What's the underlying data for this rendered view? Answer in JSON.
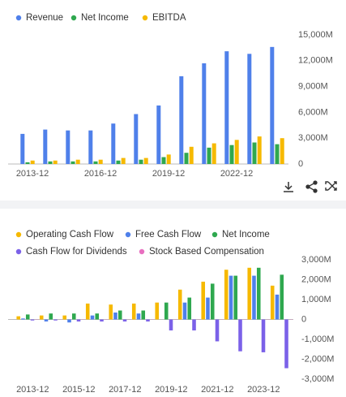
{
  "chart_data": [
    {
      "type": "bar",
      "categories": [
        "2013-12",
        null,
        null,
        "2016-12",
        null,
        null,
        "2019-12",
        null,
        null,
        "2022-12",
        null,
        null
      ],
      "series": [
        {
          "name": "Revenue",
          "color": "#4f80ea",
          "values": [
            3500,
            4000,
            3900,
            3900,
            4700,
            5800,
            6800,
            10200,
            11700,
            13100,
            12800,
            13600
          ]
        },
        {
          "name": "Net Income",
          "color": "#2fa84f",
          "values": [
            200,
            300,
            300,
            300,
            400,
            500,
            800,
            1300,
            1900,
            2200,
            2500,
            2300
          ]
        },
        {
          "name": "EBITDA",
          "color": "#f6b900",
          "values": [
            400,
            400,
            500,
            500,
            700,
            700,
            1100,
            2000,
            2400,
            2800,
            3200,
            3000
          ]
        }
      ],
      "ylim": [
        0,
        15000
      ],
      "yticks": [
        0,
        {
          "value": 3000,
          "label": "3,000M"
        },
        {
          "value": 6000,
          "label": "6,000M"
        },
        {
          "value": 9000,
          "label": "9,000M"
        },
        {
          "value": 12000,
          "label": "12,000M"
        },
        {
          "value": 15000,
          "label": "15,000M"
        }
      ],
      "grid": false
    },
    {
      "type": "bar",
      "categories": [
        "2013-12",
        null,
        "2015-12",
        null,
        "2017-12",
        null,
        "2019-12",
        null,
        "2021-12",
        null,
        "2023-12",
        null
      ],
      "series": [
        {
          "name": "Operating Cash Flow",
          "color": "#f6b900",
          "values": [
            160,
            200,
            200,
            800,
            750,
            800,
            850,
            1500,
            1900,
            2500,
            2600,
            1700
          ]
        },
        {
          "name": "Free Cash Flow",
          "color": "#4f80ea",
          "values": [
            50,
            -100,
            -150,
            200,
            350,
            300,
            0,
            850,
            1100,
            2200,
            2200,
            1250
          ]
        },
        {
          "name": "Net Income",
          "color": "#2fa84f",
          "values": [
            250,
            300,
            300,
            300,
            450,
            450,
            850,
            1100,
            1800,
            2200,
            2600,
            2250
          ]
        },
        {
          "name": "Cash Flow for Dividends",
          "color": "#7b61e8",
          "values": [
            -50,
            -50,
            -100,
            -100,
            -100,
            -100,
            -550,
            -550,
            -1100,
            -1600,
            -1650,
            -2450
          ]
        },
        {
          "name": "Stock Based Compensation",
          "color": "#e86fc0",
          "values": [
            10,
            10,
            10,
            10,
            10,
            10,
            10,
            10,
            10,
            10,
            10,
            10
          ]
        }
      ],
      "ylim": [
        -3000,
        3000
      ],
      "yticks": [
        {
          "value": -3000,
          "label": "-3,000M"
        },
        {
          "value": -2000,
          "label": "-2,000M"
        },
        {
          "value": -1000,
          "label": "-1,000M"
        },
        0,
        {
          "value": 1000,
          "label": "1,000M"
        },
        {
          "value": 2000,
          "label": "2,000M"
        },
        {
          "value": 3000,
          "label": "3,000M"
        }
      ],
      "grid": false
    }
  ]
}
